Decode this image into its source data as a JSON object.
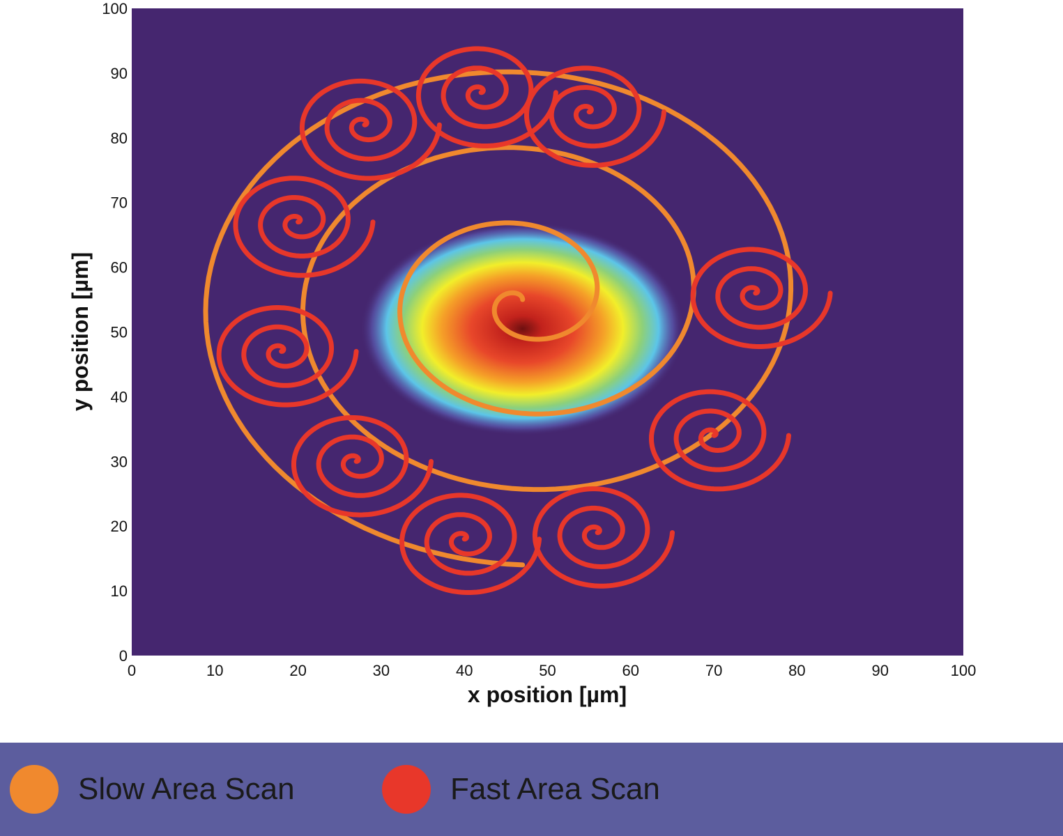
{
  "chart_data": {
    "type": "line",
    "title": "",
    "xlabel": "x position [µm]",
    "ylabel": "y position  [µm]",
    "xlim": [
      0,
      100
    ],
    "ylim": [
      0,
      100
    ],
    "xticks": [
      "0",
      "10",
      "20",
      "30",
      "40",
      "50",
      "60",
      "70",
      "80",
      "90",
      "100"
    ],
    "yticks": [
      "0",
      "10",
      "20",
      "30",
      "40",
      "50",
      "60",
      "70",
      "80",
      "90",
      "100"
    ],
    "grid": false,
    "background_color": "#45266f",
    "heatmap": {
      "description_type": "gaussian spot",
      "center": [
        47,
        50.5
      ],
      "sigma": [
        6.5,
        5.5
      ],
      "colormap": "jet"
    },
    "series": [
      {
        "name": "Slow Area Scan",
        "color": "#f0892e",
        "kind": "archimedean-spiral",
        "center": [
          47,
          55
        ],
        "start_radius": 0,
        "end_radius": 41,
        "turns": 3.5
      },
      {
        "name": "Fast Area Scan",
        "color": "#e8372a",
        "kind": "spiral-along-slow-scan",
        "sub_spirals": [
          {
            "center": [
              42,
              87
            ],
            "end_radius": 9
          },
          {
            "center": [
              55,
              84
            ],
            "end_radius": 9
          },
          {
            "center": [
              28,
              82
            ],
            "end_radius": 9
          },
          {
            "center": [
              20,
              67
            ],
            "end_radius": 9
          },
          {
            "center": [
              18,
              47
            ],
            "end_radius": 9
          },
          {
            "center": [
              27,
              30
            ],
            "end_radius": 9
          },
          {
            "center": [
              40,
              18
            ],
            "end_radius": 9
          },
          {
            "center": [
              56,
              19
            ],
            "end_radius": 9
          },
          {
            "center": [
              70,
              34
            ],
            "end_radius": 9
          },
          {
            "center": [
              75,
              56
            ],
            "end_radius": 9
          }
        ]
      }
    ]
  },
  "legend": {
    "items": [
      {
        "label": "Slow Area Scan",
        "color": "#f0892e"
      },
      {
        "label": "Fast Area Scan",
        "color": "#e8372a"
      }
    ],
    "bar_color": "#5c5d9e"
  }
}
